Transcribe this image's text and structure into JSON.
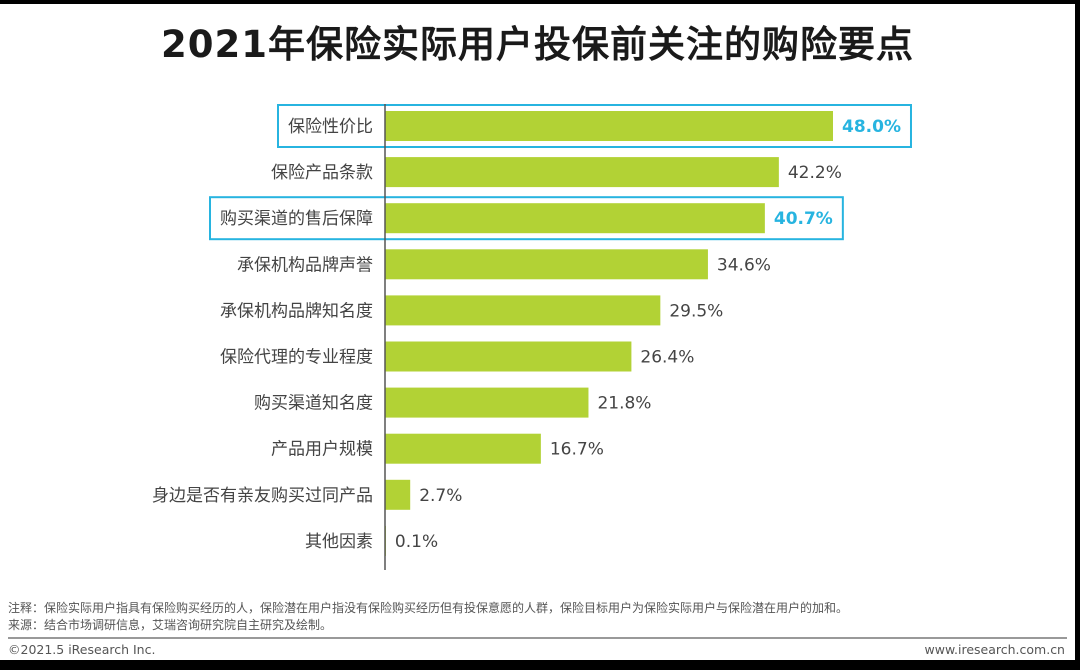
{
  "chart_data": {
    "type": "bar",
    "orientation": "horizontal",
    "title": "2021年保险实际用户投保前关注的购险要点",
    "categories": [
      "保险性价比",
      "保险产品条款",
      "购买渠道的售后保障",
      "承保机构品牌声誉",
      "承保机构品牌知名度",
      "保险代理的专业程度",
      "购买渠道知名度",
      "产品用户规模",
      "身边是否有亲友购买过同产品",
      "其他因素"
    ],
    "values": [
      48.0,
      42.2,
      40.7,
      34.6,
      29.5,
      26.4,
      21.8,
      16.7,
      2.7,
      0.1
    ],
    "value_labels": [
      "48.0%",
      "42.2%",
      "40.7%",
      "34.6%",
      "29.5%",
      "26.4%",
      "21.8%",
      "16.7%",
      "2.7%",
      "0.1%"
    ],
    "highlighted": [
      "保险性价比",
      "购买渠道的售后保障"
    ],
    "xlim": [
      0,
      50
    ],
    "grid": false,
    "colors": {
      "bar": "#b2d235",
      "highlight": "#27b4e0",
      "axis": "#555555"
    }
  },
  "footer": {
    "note": "注释：保险实际用户指具有保险购买经历的人，保险潜在用户指没有保险购买经历但有投保意愿的人群，保险目标用户为保险实际用户与保险潜在用户的加和。",
    "source": "来源：结合市场调研信息，艾瑞咨询研究院自主研究及绘制。",
    "copyright": "©2021.5 iResearch Inc.",
    "website": "www.iresearch.com.cn"
  }
}
